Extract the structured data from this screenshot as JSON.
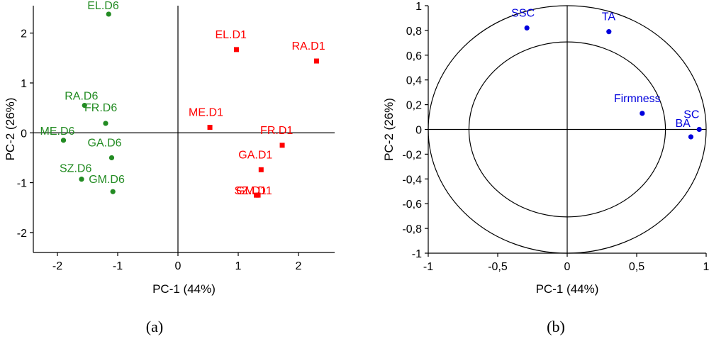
{
  "figure": {
    "panel_a_caption": "(a)",
    "panel_b_caption": "(b)"
  },
  "chart_data": [
    {
      "type": "scatter",
      "title": "",
      "xlabel": "PC-1 (44%)",
      "ylabel": "PC-2 (26%)",
      "xlim": [
        -2.4,
        2.6
      ],
      "ylim": [
        -2.4,
        2.55
      ],
      "x_ticks": [
        -2,
        -1,
        0,
        1,
        2
      ],
      "x_tick_labels": [
        "-2",
        "-1",
        "0",
        "1",
        "2"
      ],
      "y_ticks": [
        -2,
        -1,
        0,
        1,
        2
      ],
      "y_tick_labels": [
        "-2",
        "-1",
        "0",
        "1",
        "2"
      ],
      "grid": false,
      "reference_lines": {
        "x": 0,
        "y": 0
      },
      "series": [
        {
          "color": "#228B22",
          "marker": "circle",
          "points": [
            {
              "label": "EL.D6",
              "x": -1.15,
              "y": 2.38
            },
            {
              "label": "RA.D6",
              "x": -1.55,
              "y": 0.55
            },
            {
              "label": "FR.D6",
              "x": -1.2,
              "y": 0.19
            },
            {
              "label": "ME.D6",
              "x": -1.9,
              "y": -0.15
            },
            {
              "label": "GA.D6",
              "x": -1.1,
              "y": -0.5
            },
            {
              "label": "SZ.D6",
              "x": -1.6,
              "y": -0.93
            },
            {
              "label": "GM.D6",
              "x": -1.08,
              "y": -1.18
            }
          ]
        },
        {
          "color": "#FF0000",
          "marker": "square",
          "points": [
            {
              "label": "EL.D1",
              "x": 0.97,
              "y": 1.67
            },
            {
              "label": "RA.D1",
              "x": 2.3,
              "y": 1.44
            },
            {
              "label": "ME.D1",
              "x": 0.53,
              "y": 0.11
            },
            {
              "label": "FR.D1",
              "x": 1.73,
              "y": -0.25
            },
            {
              "label": "GA.D1",
              "x": 1.38,
              "y": -0.74
            },
            {
              "label": "SZ.D1",
              "x": 1.3,
              "y": -1.25
            },
            {
              "label": "GM.D1",
              "x": 1.33,
              "y": -1.25
            }
          ]
        }
      ]
    },
    {
      "type": "scatter",
      "title": "",
      "xlabel": "PC-1 (44%)",
      "ylabel": "PC-2 (26%)",
      "xlim": [
        -1,
        1
      ],
      "ylim": [
        -1,
        1
      ],
      "x_ticks": [
        -1,
        -0.5,
        0,
        0.5,
        1
      ],
      "x_tick_labels": [
        "-1",
        "-0,5",
        "0",
        "0,5",
        "1"
      ],
      "y_ticks": [
        -1,
        -0.8,
        -0.6,
        -0.4,
        -0.2,
        0,
        0.2,
        0.4,
        0.6,
        0.8,
        1
      ],
      "y_tick_labels": [
        "-1",
        "-0,8",
        "-0,6",
        "-0,4",
        "-0,2",
        "0",
        "0,2",
        "0,4",
        "0,6",
        "0,8",
        "1"
      ],
      "grid": false,
      "reference_lines": {
        "x": 0,
        "y": 0
      },
      "circles": [
        1.0,
        0.707
      ],
      "series": [
        {
          "color": "#0000DD",
          "marker": "circle",
          "points": [
            {
              "label": "SSC",
              "x": -0.29,
              "y": 0.82
            },
            {
              "label": "TA",
              "x": 0.3,
              "y": 0.79
            },
            {
              "label": "Firmness",
              "x": 0.54,
              "y": 0.13
            },
            {
              "label": "SC",
              "x": 0.95,
              "y": 0.0
            },
            {
              "label": "BA",
              "x": 0.89,
              "y": -0.06
            }
          ]
        }
      ]
    }
  ]
}
